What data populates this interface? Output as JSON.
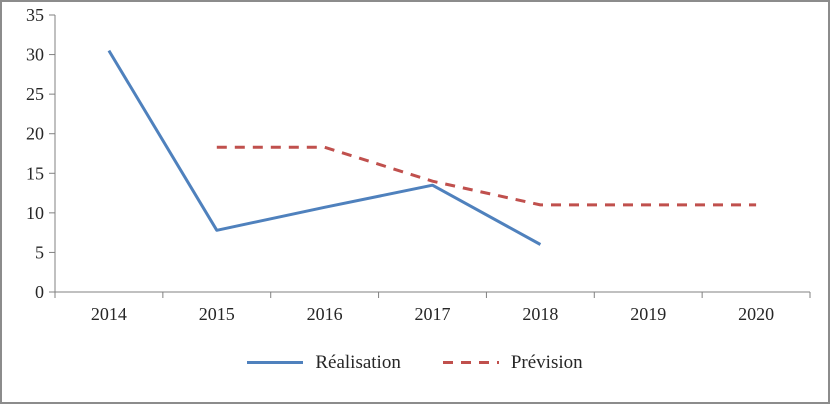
{
  "chart_data": {
    "type": "line",
    "categories": [
      "2014",
      "2015",
      "2016",
      "2017",
      "2018",
      "2019",
      "2020"
    ],
    "series": [
      {
        "name": "Réalisation",
        "color": "#4F81BD",
        "style": "solid",
        "values": [
          30.5,
          7.8,
          10.7,
          13.5,
          6,
          null,
          null
        ]
      },
      {
        "name": "Prévision",
        "color": "#C0504D",
        "style": "dashed",
        "values": [
          null,
          18.3,
          18.3,
          14,
          11,
          11,
          11
        ]
      }
    ],
    "ylim": [
      0,
      35
    ],
    "yticks": [
      0,
      5,
      10,
      15,
      20,
      25,
      30,
      35
    ],
    "grid": false,
    "legend_position": "bottom",
    "axis_color": "#808080",
    "text_color": "#262626"
  }
}
